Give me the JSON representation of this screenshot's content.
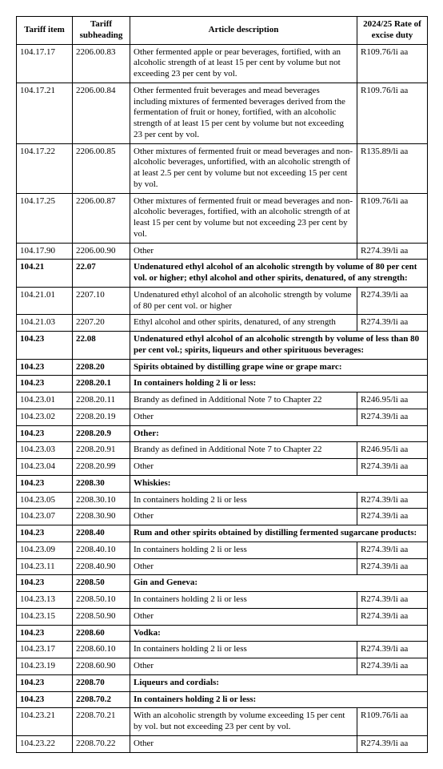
{
  "headers": {
    "c1": "Tariff item",
    "c2": "Tariff subheading",
    "c3": "Article description",
    "c4": "2024/25 Rate of excise duty"
  },
  "rows": [
    {
      "item": "104.17.17",
      "sub": "2206.00.83",
      "desc": "Other fermented apple or pear beverages, fortified, with an alcoholic strength of at least 15 per cent by volume but not exceeding 23 per cent by vol.",
      "rate": "R109.76/li aa",
      "bold": false,
      "span": false
    },
    {
      "item": "104.17.21",
      "sub": "2206.00.84",
      "desc": "Other fermented fruit beverages and mead beverages including mixtures of fermented beverages derived from the fermentation of fruit or honey, fortified, with an alcoholic strength of at least 15 per cent by volume but not exceeding 23 per cent by vol.",
      "rate": "R109.76/li aa",
      "bold": false,
      "span": false
    },
    {
      "item": "104.17.22",
      "sub": "2206.00.85",
      "desc": "Other mixtures of fermented fruit or mead beverages and non-alcoholic beverages, unfortified, with an alcoholic strength of at least 2.5 per cent by volume but not exceeding 15 per cent by vol.",
      "rate": "R135.89/li aa",
      "bold": false,
      "span": false
    },
    {
      "item": "104.17.25",
      "sub": "2206.00.87",
      "desc": "Other mixtures of fermented fruit or mead beverages and non-alcoholic beverages, fortified, with an alcoholic strength of at least 15 per cent by volume but not exceeding 23 per cent by vol.",
      "rate": "R109.76/li aa",
      "bold": false,
      "span": false
    },
    {
      "item": "104.17.90",
      "sub": "2206.00.90",
      "desc": "Other",
      "rate": "R274.39/li aa",
      "bold": false,
      "span": false
    },
    {
      "item": "104.21",
      "sub": "22.07",
      "desc": "Undenatured ethyl alcohol of an alcoholic strength by volume of 80 per cent vol. or higher; ethyl alcohol and other spirits, denatured, of any strength:",
      "rate": "",
      "bold": true,
      "span": true
    },
    {
      "item": "104.21.01",
      "sub": "2207.10",
      "desc": "Undenatured ethyl alcohol of an alcoholic strength by volume of 80 per cent vol. or higher",
      "rate": "R274.39/li aa",
      "bold": false,
      "span": false
    },
    {
      "item": "104.21.03",
      "sub": "2207.20",
      "desc": "Ethyl alcohol and other spirits, denatured, of any strength",
      "rate": "R274.39/li aa",
      "bold": false,
      "span": false
    },
    {
      "item": "104.23",
      "sub": "22.08",
      "desc": "Undenatured ethyl alcohol of an alcoholic strength by volume of less than 80 per cent vol.; spirits, liqueurs and other spirituous beverages:",
      "rate": "",
      "bold": true,
      "span": true
    },
    {
      "item": "104.23",
      "sub": "2208.20",
      "desc": "Spirits obtained by distilling grape wine or grape marc:",
      "rate": "",
      "bold": true,
      "span": true
    },
    {
      "item": "104.23",
      "sub": "2208.20.1",
      "desc": "In containers holding 2 li or less:",
      "rate": "",
      "bold": true,
      "span": true
    },
    {
      "item": "104.23.01",
      "sub": "2208.20.11",
      "desc": "Brandy as defined in Additional Note 7 to Chapter 22",
      "rate": "R246.95/li aa",
      "bold": false,
      "span": false
    },
    {
      "item": "104.23.02",
      "sub": "2208.20.19",
      "desc": "Other",
      "rate": "R274.39/li aa",
      "bold": false,
      "span": false
    },
    {
      "item": "104.23",
      "sub": "2208.20.9",
      "desc": "Other:",
      "rate": "",
      "bold": true,
      "span": true
    },
    {
      "item": "104.23.03",
      "sub": "2208.20.91",
      "desc": "Brandy as defined in Additional Note 7 to Chapter 22",
      "rate": "R246.95/li aa",
      "bold": false,
      "span": false
    },
    {
      "item": "104.23.04",
      "sub": "2208.20.99",
      "desc": "Other",
      "rate": "R274.39/li aa",
      "bold": false,
      "span": false
    },
    {
      "item": "104.23",
      "sub": "2208.30",
      "desc": "Whiskies:",
      "rate": "",
      "bold": true,
      "span": true
    },
    {
      "item": "104.23.05",
      "sub": "2208.30.10",
      "desc": "In containers holding 2 li or less",
      "rate": "R274.39/li aa",
      "bold": false,
      "span": false
    },
    {
      "item": "104.23.07",
      "sub": "2208.30.90",
      "desc": "Other",
      "rate": "R274.39/li aa",
      "bold": false,
      "span": false
    },
    {
      "item": "104.23",
      "sub": "2208.40",
      "desc": "Rum and other spirits obtained by distilling fermented sugarcane products:",
      "rate": "",
      "bold": true,
      "span": true
    },
    {
      "item": "104.23.09",
      "sub": "2208.40.10",
      "desc": "In containers holding 2 li or less",
      "rate": "R274.39/li aa",
      "bold": false,
      "span": false
    },
    {
      "item": "104.23.11",
      "sub": "2208.40.90",
      "desc": "Other",
      "rate": "R274.39/li aa",
      "bold": false,
      "span": false
    },
    {
      "item": "104.23",
      "sub": "2208.50",
      "desc": "Gin and Geneva:",
      "rate": "",
      "bold": true,
      "span": true
    },
    {
      "item": "104.23.13",
      "sub": "2208.50.10",
      "desc": "In containers holding 2 li or less",
      "rate": "R274.39/li aa",
      "bold": false,
      "span": false
    },
    {
      "item": "104.23.15",
      "sub": "2208.50.90",
      "desc": "Other",
      "rate": "R274.39/li aa",
      "bold": false,
      "span": false
    },
    {
      "item": "104.23",
      "sub": "2208.60",
      "desc": "Vodka:",
      "rate": "",
      "bold": true,
      "span": true
    },
    {
      "item": "104.23.17",
      "sub": "2208.60.10",
      "desc": "In containers holding 2 li or less",
      "rate": "R274.39/li aa",
      "bold": false,
      "span": false
    },
    {
      "item": "104.23.19",
      "sub": "2208.60.90",
      "desc": "Other",
      "rate": "R274.39/li aa",
      "bold": false,
      "span": false
    },
    {
      "item": "104.23",
      "sub": "2208.70",
      "desc": "Liqueurs and cordials:",
      "rate": "",
      "bold": true,
      "span": true
    },
    {
      "item": "104.23",
      "sub": "2208.70.2",
      "desc": "In containers holding 2 li or less:",
      "rate": "",
      "bold": true,
      "span": true
    },
    {
      "item": "104.23.21",
      "sub": "2208.70.21",
      "desc": "With an alcoholic strength by volume exceeding 15 per cent by vol. but not exceeding 23 per cent by vol.",
      "rate": "R109.76/li aa",
      "bold": false,
      "span": false
    },
    {
      "item": "104.23.22",
      "sub": "2208.70.22",
      "desc": "Other",
      "rate": "R274.39/li aa",
      "bold": false,
      "span": false
    }
  ]
}
